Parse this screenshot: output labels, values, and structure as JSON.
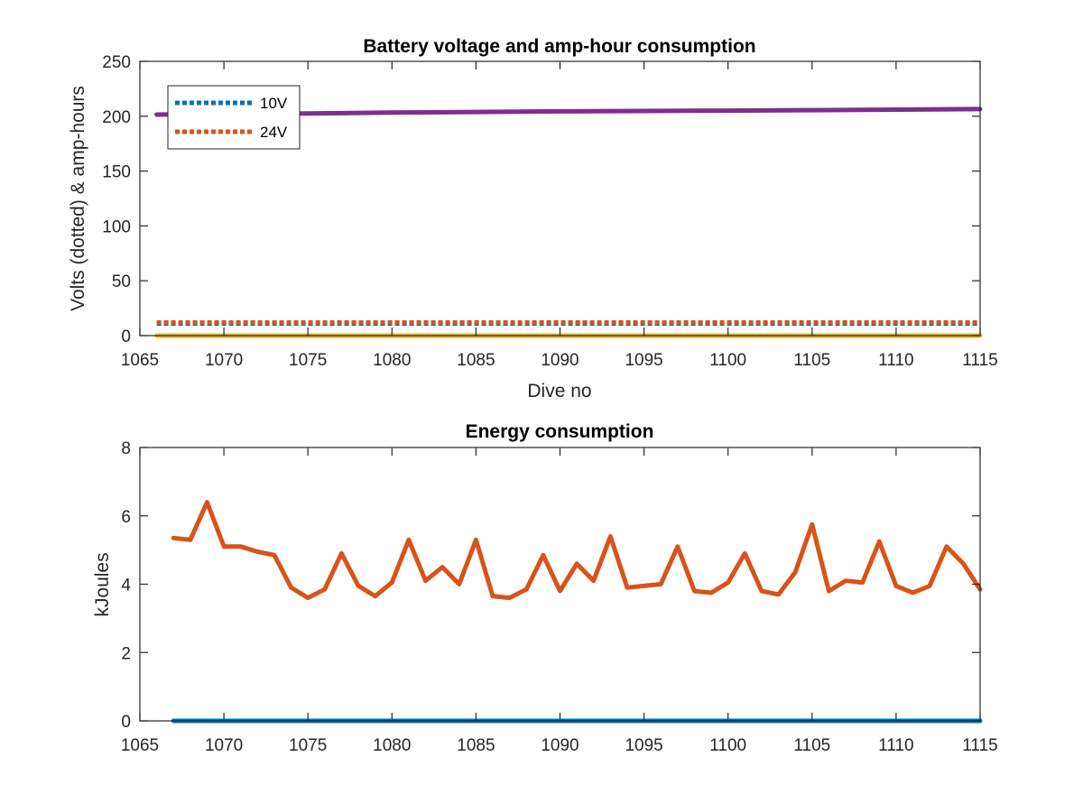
{
  "chart_data": [
    {
      "type": "line",
      "title": "Battery voltage and amp-hour consumption",
      "xlabel": "Dive no",
      "ylabel": "Volts (dotted) & amp-hours",
      "xlim": [
        1065,
        1115
      ],
      "ylim": [
        0,
        250
      ],
      "xticks": [
        1065,
        1070,
        1075,
        1080,
        1085,
        1090,
        1095,
        1100,
        1105,
        1110,
        1115
      ],
      "yticks": [
        0,
        50,
        100,
        150,
        200,
        250
      ],
      "legend": {
        "placement": "top-left",
        "entries": [
          "10V",
          "24V"
        ]
      },
      "series": [
        {
          "name": "10V",
          "style": "dotted",
          "color": "#0072BD",
          "x": [
            1066,
            1115
          ],
          "y": [
            11,
            11
          ]
        },
        {
          "name": "24V",
          "style": "dotted",
          "color": "#D95319",
          "x": [
            1066,
            1115
          ],
          "y": [
            12,
            12
          ]
        },
        {
          "style": "solid",
          "color": "#EDB120",
          "x": [
            1066,
            1115
          ],
          "y": [
            0,
            0
          ]
        },
        {
          "style": "solid",
          "color": "#7E2F8E",
          "x": [
            1066,
            1075,
            1080,
            1085,
            1090,
            1095,
            1100,
            1105,
            1110,
            1115
          ],
          "y": [
            201.5,
            202.5,
            203.3,
            203.9,
            204.4,
            204.8,
            205.1,
            205.5,
            206,
            206.5
          ]
        }
      ]
    },
    {
      "type": "line",
      "title": "Energy consumption",
      "xlabel": "",
      "ylabel": "kJoules",
      "xlim": [
        1065,
        1115
      ],
      "ylim": [
        0,
        8
      ],
      "xticks": [
        1065,
        1070,
        1075,
        1080,
        1085,
        1090,
        1095,
        1100,
        1105,
        1110,
        1115
      ],
      "yticks": [
        0,
        2,
        4,
        6,
        8
      ],
      "series": [
        {
          "style": "solid",
          "color": "#0072BD",
          "x": [
            1067,
            1115
          ],
          "y": [
            0,
            0
          ]
        },
        {
          "style": "solid",
          "color": "#D95319",
          "x": [
            1067,
            1068,
            1069,
            1070,
            1071,
            1072,
            1073,
            1074,
            1075,
            1076,
            1077,
            1078,
            1079,
            1080,
            1081,
            1082,
            1083,
            1084,
            1085,
            1086,
            1087,
            1088,
            1089,
            1090,
            1091,
            1092,
            1093,
            1094,
            1095,
            1096,
            1097,
            1098,
            1099,
            1100,
            1101,
            1102,
            1103,
            1104,
            1105,
            1106,
            1107,
            1108,
            1109,
            1110,
            1111,
            1112,
            1113,
            1114,
            1115
          ],
          "y": [
            5.35,
            5.3,
            6.4,
            5.1,
            5.1,
            4.95,
            4.85,
            3.9,
            3.6,
            3.85,
            4.9,
            3.95,
            3.65,
            4.05,
            5.3,
            4.1,
            4.5,
            4.0,
            5.3,
            3.65,
            3.6,
            3.85,
            4.85,
            3.8,
            4.6,
            4.1,
            5.4,
            3.9,
            3.95,
            4.0,
            5.1,
            3.8,
            3.75,
            4.05,
            4.9,
            3.8,
            3.7,
            4.35,
            5.75,
            3.8,
            4.1,
            4.05,
            5.25,
            3.95,
            3.75,
            3.95,
            5.1,
            4.6,
            3.85
          ]
        }
      ]
    }
  ]
}
